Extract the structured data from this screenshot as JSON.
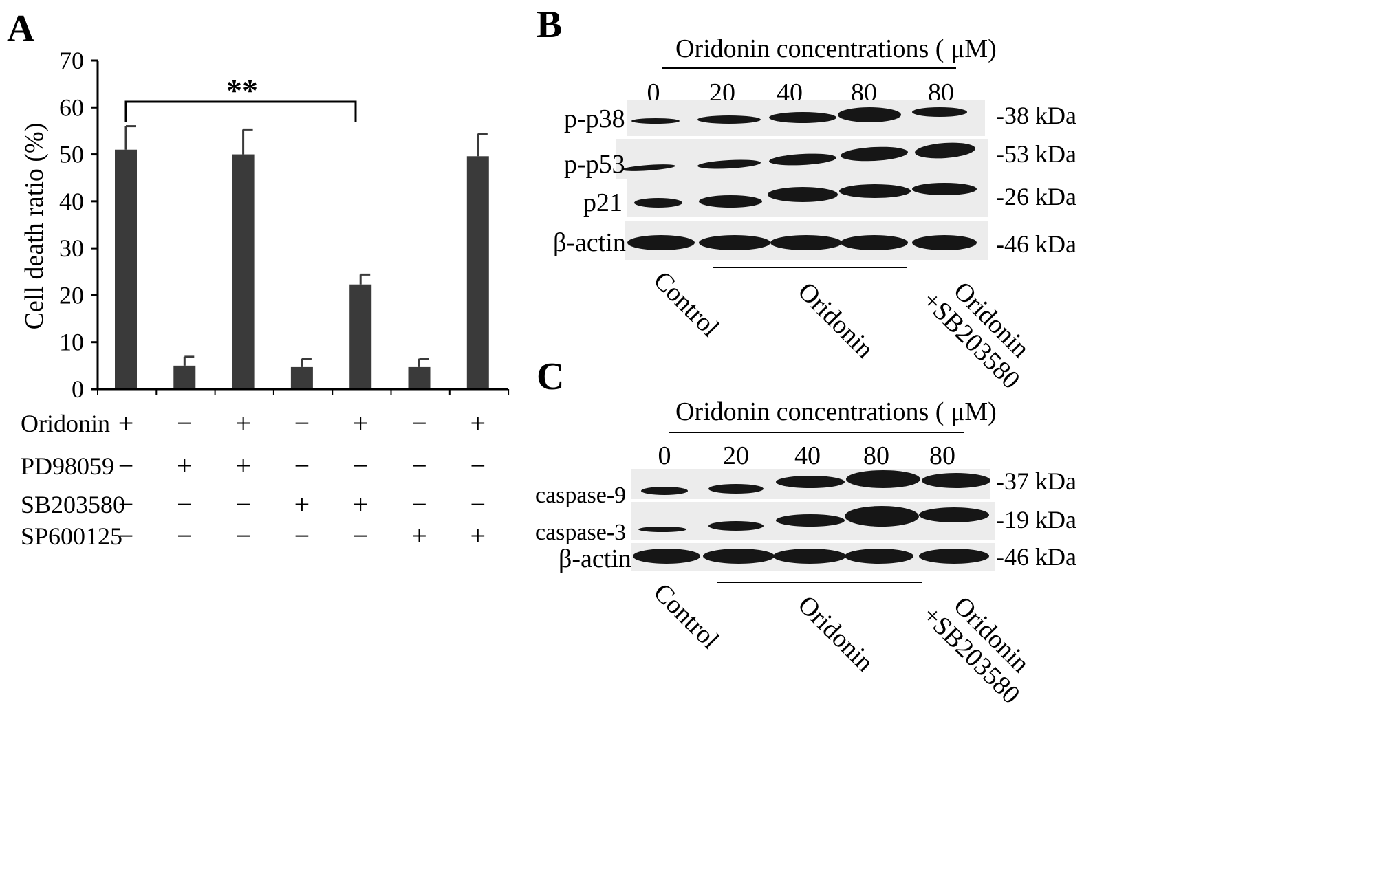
{
  "panel_a": {
    "letter": "A",
    "significance": "**",
    "treatment_rows": [
      {
        "name": "Oridonin",
        "signs": [
          "+",
          "−",
          "+",
          "−",
          "+",
          "−",
          "+"
        ]
      },
      {
        "name": "PD98059",
        "signs": [
          "−",
          "+",
          "+",
          "−",
          "−",
          "−",
          "−"
        ]
      },
      {
        "name": "SB203580",
        "signs": [
          "−",
          "−",
          "−",
          "+",
          "+",
          "−",
          "−"
        ]
      },
      {
        "name": "SP600125",
        "signs": [
          "−",
          "−",
          "−",
          "−",
          "−",
          "+",
          "+"
        ]
      }
    ]
  },
  "chart_data": {
    "type": "bar",
    "title": "",
    "xlabel": "",
    "ylabel": "Cell death ratio (%)",
    "ylim": [
      0,
      70
    ],
    "yticks": [
      0,
      10,
      20,
      30,
      40,
      50,
      60,
      70
    ],
    "values": [
      51,
      5,
      50,
      4.7,
      22.3,
      4.7,
      49.6
    ],
    "errors": [
      5,
      1.9,
      5.3,
      1.8,
      2.1,
      1.8,
      4.8
    ],
    "bar_color": "#3a3a3a",
    "grid": false,
    "significance": {
      "from_bar": 1,
      "to_bar": 5,
      "label": "**"
    }
  },
  "panel_b": {
    "letter": "B",
    "conc_title": "Oridonin concentrations ( μM)",
    "concentrations": [
      "0",
      "20",
      "40",
      "80",
      "80"
    ],
    "proteins": [
      "p-p38",
      "p-p53",
      "p21",
      "β-actin"
    ],
    "sizes": [
      "-38 kDa",
      "-53 kDa",
      "-26 kDa",
      "-46 kDa"
    ],
    "groups": {
      "control": "Control",
      "oridonin": "Oridonin",
      "combo_line1": "Oridonin",
      "combo_line2": "+SB203580"
    }
  },
  "panel_c": {
    "letter": "C",
    "conc_title": "Oridonin concentrations ( μM)",
    "concentrations": [
      "0",
      "20",
      "40",
      "80",
      "80"
    ],
    "proteins": [
      "caspase-9",
      "caspase-3",
      "β-actin"
    ],
    "sizes": [
      "-37 kDa",
      "-19 kDa",
      "-46 kDa"
    ],
    "groups": {
      "control": "Control",
      "oridonin": "Oridonin",
      "combo_line1": "Oridonin",
      "combo_line2": "+SB203580"
    }
  }
}
